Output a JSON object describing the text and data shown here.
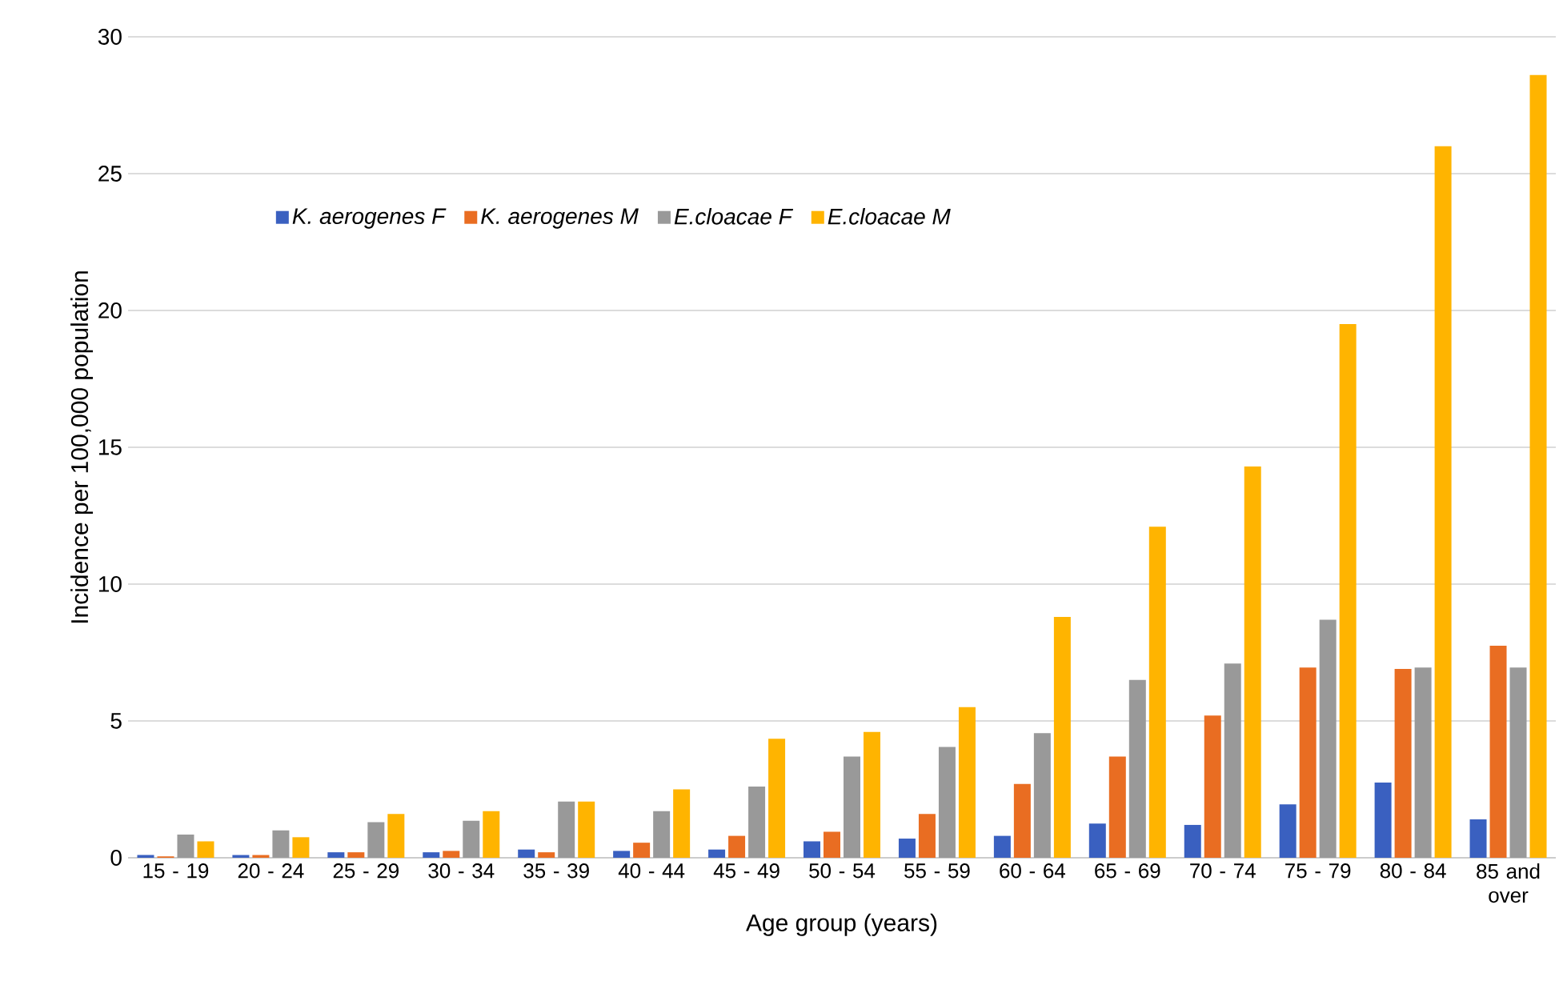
{
  "chart_data": {
    "type": "bar",
    "xlabel": "Age group (years)",
    "ylabel": "Incidence per 100,000 population",
    "categories": [
      "15 - 19",
      "20 - 24",
      "25 - 29",
      "30 - 34",
      "35 - 39",
      "40 - 44",
      "45 - 49",
      "50 - 54",
      "55 - 59",
      "60 - 64",
      "65 - 69",
      "70 - 74",
      "75 - 79",
      "80 - 84",
      "85 and over"
    ],
    "series": [
      {
        "name": "K. aerogenes F",
        "color": "#3a60c0",
        "values": [
          0.1,
          0.1,
          0.2,
          0.2,
          0.3,
          0.25,
          0.3,
          0.6,
          0.7,
          0.8,
          1.25,
          1.2,
          1.95,
          2.75,
          1.4
        ]
      },
      {
        "name": "K. aerogenes M",
        "color": "#e96d22",
        "values": [
          0.05,
          0.1,
          0.2,
          0.25,
          0.2,
          0.55,
          0.8,
          0.95,
          1.6,
          2.7,
          3.7,
          5.2,
          6.95,
          6.9,
          7.75
        ]
      },
      {
        "name": "E.cloacae F",
        "color": "#999999",
        "values": [
          0.85,
          1.0,
          1.3,
          1.35,
          2.05,
          1.7,
          2.6,
          3.7,
          4.05,
          4.55,
          6.5,
          7.1,
          8.7,
          6.95,
          6.95
        ]
      },
      {
        "name": "E.cloacae M",
        "color": "#ffb400",
        "values": [
          0.6,
          0.75,
          1.6,
          1.7,
          2.05,
          2.5,
          4.35,
          4.6,
          5.5,
          8.8,
          12.1,
          14.3,
          19.5,
          26.0,
          28.6
        ]
      }
    ],
    "ylim": [
      0,
      30
    ],
    "yticks": [
      0,
      5,
      10,
      15,
      20,
      25,
      30
    ],
    "grid": "y",
    "legend": "top left"
  }
}
